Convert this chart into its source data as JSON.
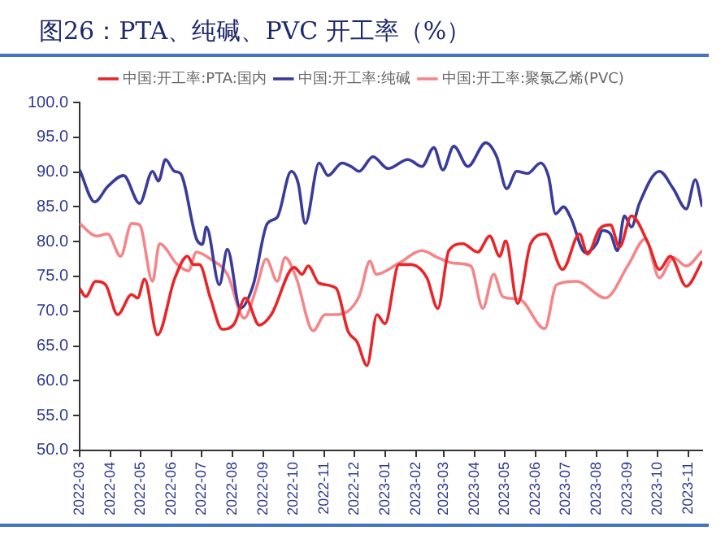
{
  "chart_data": {
    "type": "line",
    "title": "图26：PTA、纯碱、PVC 开工率（%）",
    "xlim": [
      "2022-03",
      "2023-11-15"
    ],
    "xticks": [
      "2022-03",
      "2022-04",
      "2022-05",
      "2022-06",
      "2022-07",
      "2022-08",
      "2022-09",
      "2022-10",
      "2022-11",
      "2022-12",
      "2023-01",
      "2023-02",
      "2023-03",
      "2023-04",
      "2023-05",
      "2023-06",
      "2023-07",
      "2023-08",
      "2023-09",
      "2023-10",
      "2023-11"
    ],
    "ylim": [
      50,
      100
    ],
    "yticks": [
      {
        "value": 50,
        "label": "50.0"
      },
      {
        "value": 55,
        "label": "55.0"
      },
      {
        "value": 60,
        "label": "60.0"
      },
      {
        "value": 65,
        "label": "65.0"
      },
      {
        "value": 70,
        "label": "70.0"
      },
      {
        "value": 75,
        "label": "75.0"
      },
      {
        "value": 80,
        "label": "80.0"
      },
      {
        "value": 85,
        "label": "85.0"
      },
      {
        "value": 90,
        "label": "90.0"
      },
      {
        "value": 95,
        "label": "95.0"
      },
      {
        "value": 100,
        "label": "100.0"
      }
    ],
    "grid": false,
    "legend": "top",
    "marker": "none",
    "line_style": "solid",
    "series": [
      {
        "name": "中国:开工率:PTA:国内",
        "color": "#e8262a",
        "x": [
          "2022-03-01",
          "2022-03-07",
          "2022-03-17",
          "2022-03-27",
          "2022-04-08",
          "2022-04-22",
          "2022-04-28",
          "2022-05-05",
          "2022-05-18",
          "2022-06-04",
          "2022-06-17",
          "2022-06-23",
          "2022-06-29",
          "2022-07-10",
          "2022-07-22",
          "2022-08-03",
          "2022-08-14",
          "2022-08-28",
          "2022-09-09",
          "2022-10-02",
          "2022-10-10",
          "2022-10-16",
          "2022-10-27",
          "2022-11-13",
          "2022-11-25",
          "2022-12-04",
          "2022-12-14",
          "2022-12-24",
          "2023-01-01",
          "2023-01-15",
          "2023-01-27",
          "2023-02-12",
          "2023-02-23",
          "2023-03-06",
          "2023-03-20",
          "2023-04-04",
          "2023-04-16",
          "2023-04-26",
          "2023-05-02",
          "2023-05-14",
          "2023-05-27",
          "2023-06-11",
          "2023-06-28",
          "2023-07-15",
          "2023-07-23",
          "2023-08-04",
          "2023-08-15",
          "2023-08-24",
          "2023-09-05",
          "2023-09-22",
          "2023-10-03",
          "2023-10-14",
          "2023-10-30",
          "2023-11-15"
        ],
        "values": [
          73.3,
          72.1,
          74.3,
          73.8,
          69.5,
          72.4,
          71.9,
          74.6,
          66.6,
          74.6,
          77.9,
          76.7,
          76.7,
          71.9,
          67.4,
          68.2,
          71.9,
          68.0,
          69.5,
          76.3,
          75.3,
          76.5,
          74.0,
          73.3,
          67.1,
          65.6,
          62.2,
          69.5,
          68.2,
          76.7,
          76.7,
          74.8,
          70.4,
          78.7,
          79.7,
          78.5,
          80.8,
          77.9,
          80.1,
          71.1,
          79.7,
          81.1,
          76.0,
          81.1,
          78.2,
          81.8,
          82.4,
          79.2,
          83.7,
          79.7,
          76.0,
          77.9,
          73.6,
          77.2
        ]
      },
      {
        "name": "中国:开工率:纯碱",
        "color": "#3b3b9a",
        "x": [
          "2022-03-01",
          "2022-03-16",
          "2022-03-29",
          "2022-04-14",
          "2022-04-30",
          "2022-05-13",
          "2022-05-19",
          "2022-05-26",
          "2022-06-04",
          "2022-06-10",
          "2022-06-26",
          "2022-07-02",
          "2022-07-06",
          "2022-07-19",
          "2022-07-27",
          "2022-08-09",
          "2022-08-22",
          "2022-09-05",
          "2022-09-15",
          "2022-09-29",
          "2022-10-06",
          "2022-10-13",
          "2022-10-27",
          "2022-11-05",
          "2022-11-19",
          "2022-11-28",
          "2022-12-06",
          "2022-12-20",
          "2023-01-04",
          "2023-01-24",
          "2023-02-07",
          "2023-02-19",
          "2023-02-28",
          "2023-03-11",
          "2023-03-25",
          "2023-04-12",
          "2023-04-23",
          "2023-05-03",
          "2023-05-13",
          "2023-05-24",
          "2023-06-06",
          "2023-06-14",
          "2023-06-21",
          "2023-06-29",
          "2023-07-06",
          "2023-07-21",
          "2023-08-01",
          "2023-08-07",
          "2023-08-15",
          "2023-08-22",
          "2023-08-29",
          "2023-09-05",
          "2023-09-13",
          "2023-10-03",
          "2023-10-17",
          "2023-10-30",
          "2023-11-08",
          "2023-11-15"
        ],
        "values": [
          90.3,
          85.7,
          87.9,
          89.5,
          85.5,
          90.1,
          88.7,
          91.8,
          90.1,
          89.8,
          80.4,
          79.6,
          82.1,
          73.8,
          78.9,
          70.4,
          73.8,
          82.6,
          83.5,
          90.1,
          88.4,
          82.6,
          91.3,
          89.5,
          91.3,
          90.8,
          90.1,
          92.2,
          90.5,
          91.8,
          90.8,
          93.5,
          90.3,
          93.7,
          90.8,
          94.2,
          92.2,
          87.6,
          90.1,
          89.8,
          91.3,
          89.3,
          84.0,
          85.0,
          83.5,
          78.4,
          79.7,
          81.6,
          81.1,
          78.7,
          83.7,
          82.1,
          85.5,
          90.1,
          87.6,
          84.7,
          88.9,
          85.0
        ]
      },
      {
        "name": "中国:开工率:聚氯乙烯(PVC)",
        "color": "#f4868a",
        "x": [
          "2022-03-01",
          "2022-03-18",
          "2022-03-29",
          "2022-04-11",
          "2022-04-22",
          "2022-04-30",
          "2022-05-13",
          "2022-05-20",
          "2022-06-07",
          "2022-06-18",
          "2022-06-26",
          "2022-07-10",
          "2022-07-27",
          "2022-08-13",
          "2022-08-25",
          "2022-09-04",
          "2022-09-15",
          "2022-09-23",
          "2022-10-04",
          "2022-10-21",
          "2022-11-02",
          "2022-11-13",
          "2022-12-06",
          "2022-12-17",
          "2022-12-23",
          "2023-01-15",
          "2023-02-07",
          "2023-02-23",
          "2023-03-11",
          "2023-03-28",
          "2023-04-09",
          "2023-04-20",
          "2023-04-29",
          "2023-05-16",
          "2023-06-10",
          "2023-06-22",
          "2023-07-12",
          "2023-08-10",
          "2023-09-02",
          "2023-09-19",
          "2023-10-03",
          "2023-10-17",
          "2023-10-30",
          "2023-11-15"
        ],
        "values": [
          82.6,
          80.8,
          81.1,
          77.9,
          82.6,
          82.4,
          74.3,
          79.7,
          76.7,
          75.8,
          78.5,
          77.5,
          75.3,
          69.0,
          73.3,
          77.5,
          74.3,
          77.7,
          74.8,
          67.2,
          69.5,
          69.5,
          72.1,
          77.2,
          75.3,
          76.9,
          78.7,
          77.7,
          76.9,
          76.5,
          70.4,
          75.3,
          72.1,
          71.7,
          67.5,
          73.8,
          74.3,
          71.9,
          76.7,
          80.4,
          74.8,
          77.7,
          76.5,
          78.7
        ]
      }
    ]
  }
}
